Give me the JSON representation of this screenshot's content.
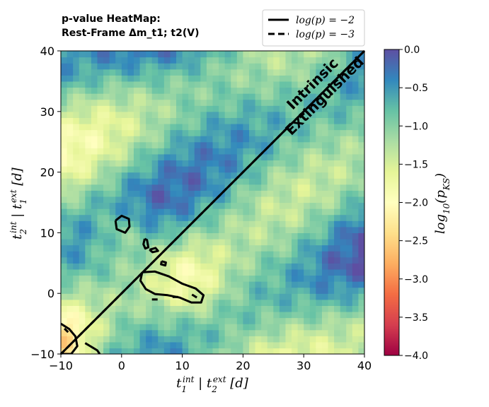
{
  "chart_data": {
    "type": "heatmap",
    "title_line1": "p-value HeatMap:",
    "title_line2": "Rest-Frame Δm_t1; t2(V)",
    "xlabel": "t1^int | t2^ext [d]",
    "ylabel": "t2^int | t1^ext [d]",
    "colorbar_label": "log10(p_KS)",
    "xlim": [
      -10,
      40
    ],
    "ylim": [
      -10,
      40
    ],
    "xticks": [
      -10,
      0,
      10,
      20,
      30,
      40
    ],
    "yticks": [
      -10,
      0,
      10,
      20,
      30,
      40
    ],
    "xtick_labels": [
      "−10",
      "0",
      "10",
      "20",
      "30",
      "40"
    ],
    "ytick_labels": [
      "−10",
      "0",
      "10",
      "20",
      "30",
      "40"
    ],
    "colorbar_range": [
      -4.0,
      0.0
    ],
    "colorbar_ticks": [
      0.0,
      -0.5,
      -1.0,
      -1.5,
      -2.0,
      -2.5,
      -3.0,
      -3.5,
      -4.0
    ],
    "colorbar_tick_labels": [
      "0.0",
      "−0.5",
      "−1.0",
      "−1.5",
      "−2.0",
      "−2.5",
      "−3.0",
      "−3.5",
      "−4.0"
    ],
    "colormap": "Spectral",
    "legend": {
      "position": "top-right (outside)",
      "entries": [
        {
          "label": "log(p) = −2",
          "style": "solid"
        },
        {
          "label": "log(p) = −3",
          "style": "dashed"
        }
      ]
    },
    "annotations": [
      {
        "text": "Intrinsic",
        "x": 32,
        "y": 34,
        "angle": 45
      },
      {
        "text": "Extinguished",
        "x": 34,
        "y": 32,
        "angle": 45
      }
    ],
    "diagonal": {
      "from": [
        -10,
        -10
      ],
      "to": [
        40,
        40
      ]
    },
    "contours_log_p_minus_2": [
      [
        [
          -1,
          12
        ],
        [
          0,
          12.8
        ],
        [
          1.2,
          12.3
        ],
        [
          1.3,
          11
        ],
        [
          0.6,
          10
        ],
        [
          -0.8,
          10.6
        ],
        [
          -1,
          12
        ]
      ],
      [
        [
          3.8,
          9
        ],
        [
          4.2,
          8.8
        ],
        [
          4.4,
          7.6
        ],
        [
          3.9,
          7.4
        ],
        [
          3.6,
          8.1
        ],
        [
          3.8,
          9
        ]
      ],
      [
        [
          4.6,
          7.2
        ],
        [
          5.6,
          7.5
        ],
        [
          6,
          7
        ],
        [
          5.1,
          6.8
        ],
        [
          4.6,
          7.2
        ]
      ],
      [
        [
          6.6,
          5.3
        ],
        [
          7.3,
          5.1
        ],
        [
          7.2,
          4.6
        ],
        [
          6.5,
          4.8
        ],
        [
          6.6,
          5.3
        ]
      ],
      [
        [
          3.4,
          3.5
        ],
        [
          5.5,
          3.6
        ],
        [
          7.8,
          2.8
        ],
        [
          10,
          1.6
        ],
        [
          12.2,
          0.8
        ],
        [
          13.5,
          -0.3
        ],
        [
          13.1,
          -1.5
        ],
        [
          11.5,
          -1.5
        ],
        [
          9.6,
          -0.7
        ],
        [
          7.6,
          -0.3
        ],
        [
          5.5,
          -0.1
        ],
        [
          4,
          0.7
        ],
        [
          3.1,
          2.1
        ],
        [
          3.4,
          3.5
        ]
      ],
      [
        [
          -10,
          -5
        ],
        [
          -8.6,
          -5.9
        ],
        [
          -7.6,
          -7.1
        ],
        [
          -7.3,
          -8.7
        ],
        [
          -8.3,
          -10
        ],
        [
          -10,
          -10
        ]
      ],
      [
        [
          -6,
          -8.2
        ],
        [
          -5,
          -8.8
        ],
        [
          -4,
          -9.4
        ],
        [
          -3.6,
          -10
        ]
      ]
    ],
    "contours_log_p_minus_3": [
      [
        [
          -9.4,
          -5.8
        ],
        [
          -8.8,
          -6.4
        ]
      ],
      [
        [
          5,
          -1
        ],
        [
          6,
          -1
        ]
      ],
      [
        [
          8.4,
          -0.6
        ],
        [
          9.8,
          -0.6
        ]
      ],
      [
        [
          11.6,
          -0.2
        ],
        [
          12.6,
          -0.8
        ]
      ]
    ]
  }
}
